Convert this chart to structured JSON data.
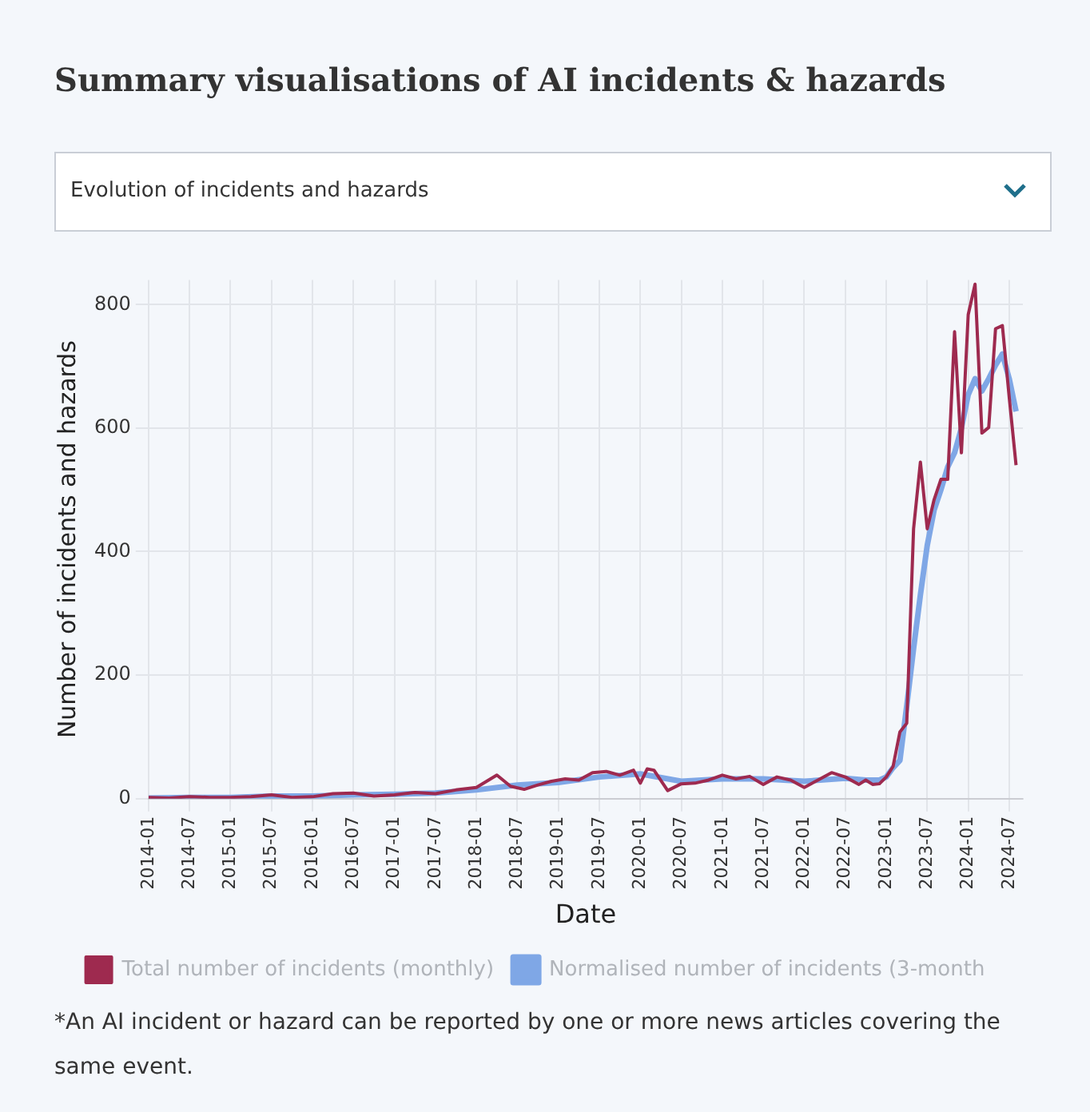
{
  "chart_data": {
    "type": "line",
    "title": "Summary visualisations of AI incidents & hazards",
    "subtitle": "Evolution of incidents and hazards",
    "xlabel": "Date",
    "ylabel": "Number of incidents and hazards",
    "xlim": [
      "2014-01",
      "2024-09"
    ],
    "xticks": [
      "2014-01",
      "2014-07",
      "2015-01",
      "2015-07",
      "2016-01",
      "2016-07",
      "2017-01",
      "2017-07",
      "2018-01",
      "2018-07",
      "2019-01",
      "2019-07",
      "2020-01",
      "2020-07",
      "2021-01",
      "2021-07",
      "2022-01",
      "2022-07",
      "2023-01",
      "2023-07",
      "2024-01",
      "2024-07"
    ],
    "ylim": [
      0,
      840
    ],
    "yticks": [
      0,
      200,
      400,
      600,
      800
    ],
    "grid": true,
    "legend": "bottom",
    "marker": "none",
    "line_style": "solid",
    "series": [
      {
        "name": "Total number of incidents (monthly)",
        "color": "#9e2a4f",
        "x": [
          "2014-01",
          "2014-04",
          "2014-07",
          "2014-10",
          "2015-01",
          "2015-04",
          "2015-07",
          "2015-10",
          "2016-01",
          "2016-04",
          "2016-07",
          "2016-10",
          "2017-01",
          "2017-04",
          "2017-07",
          "2017-10",
          "2018-01",
          "2018-04",
          "2018-06",
          "2018-08",
          "2018-10",
          "2018-12",
          "2019-02",
          "2019-04",
          "2019-06",
          "2019-08",
          "2019-10",
          "2019-12",
          "2020-01",
          "2020-02",
          "2020-03",
          "2020-05",
          "2020-07",
          "2020-09",
          "2020-11",
          "2021-01",
          "2021-03",
          "2021-05",
          "2021-07",
          "2021-09",
          "2021-11",
          "2022-01",
          "2022-03",
          "2022-05",
          "2022-07",
          "2022-09",
          "2022-10",
          "2022-11",
          "2022-12",
          "2023-01",
          "2023-02",
          "2023-03",
          "2023-04",
          "2023-05",
          "2023-06",
          "2023-07",
          "2023-08",
          "2023-09",
          "2023-10",
          "2023-11",
          "2023-12",
          "2024-01",
          "2024-02",
          "2024-03",
          "2024-04",
          "2024-05",
          "2024-06",
          "2024-07",
          "2024-08"
        ],
        "values": [
          2,
          1,
          3,
          2,
          2,
          3,
          6,
          2,
          3,
          8,
          9,
          4,
          6,
          10,
          8,
          14,
          18,
          38,
          20,
          15,
          22,
          28,
          32,
          30,
          42,
          44,
          38,
          46,
          25,
          48,
          46,
          13,
          24,
          25,
          30,
          38,
          32,
          36,
          23,
          35,
          30,
          18,
          30,
          42,
          35,
          23,
          30,
          23,
          24,
          35,
          52,
          108,
          122,
          437,
          545,
          437,
          484,
          517,
          517,
          756,
          560,
          784,
          833,
          592,
          601,
          761,
          766,
          650,
          540
        ]
      },
      {
        "name": "Normalised number of incidents (3-month",
        "color": "#7fa7e6",
        "x": [
          "2014-01",
          "2014-07",
          "2015-01",
          "2015-07",
          "2016-01",
          "2016-07",
          "2017-01",
          "2017-07",
          "2018-01",
          "2018-07",
          "2019-01",
          "2019-07",
          "2020-01",
          "2020-07",
          "2021-01",
          "2021-07",
          "2022-01",
          "2022-07",
          "2022-10",
          "2022-12",
          "2023-01",
          "2023-02",
          "2023-03",
          "2023-04",
          "2023-05",
          "2023-06",
          "2023-07",
          "2023-08",
          "2023-09",
          "2023-10",
          "2023-11",
          "2023-12",
          "2024-01",
          "2024-02",
          "2024-03",
          "2024-04",
          "2024-05",
          "2024-06",
          "2024-07",
          "2024-08"
        ],
        "values": [
          1,
          2,
          2,
          4,
          4,
          6,
          7,
          9,
          14,
          22,
          26,
          35,
          40,
          28,
          32,
          32,
          28,
          33,
          30,
          30,
          35,
          50,
          62,
          150,
          243,
          330,
          410,
          467,
          500,
          537,
          560,
          600,
          654,
          680,
          660,
          680,
          702,
          720,
          680,
          627
        ]
      }
    ],
    "annotations": [
      "*An AI incident or hazard can be reported by one or more news articles covering the same event."
    ]
  }
}
